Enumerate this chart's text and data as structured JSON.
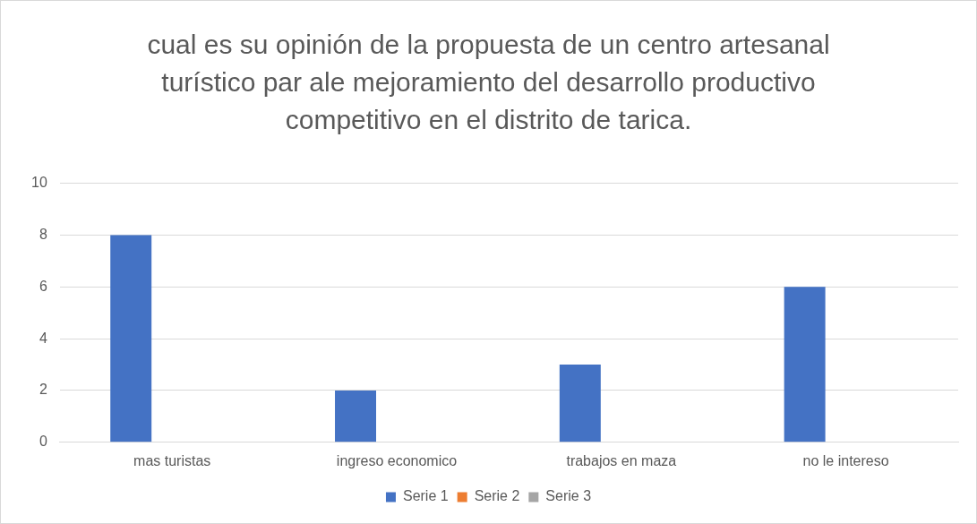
{
  "chart_data": {
    "type": "bar",
    "title": "cual es su opinión de la propuesta de un centro artesanal turístico par ale mejoramiento del desarrollo productivo competitivo en el distrito de tarica.",
    "categories": [
      "mas turistas",
      "ingreso economico",
      "trabajos en maza",
      "no le intereso"
    ],
    "series": [
      {
        "name": "Serie 1",
        "color": "#4472c4",
        "values": [
          8,
          2,
          3,
          6
        ]
      },
      {
        "name": "Serie 2",
        "color": "#ed7d31",
        "values": [
          null,
          null,
          null,
          null
        ]
      },
      {
        "name": "Serie 3",
        "color": "#a5a5a5",
        "values": [
          null,
          null,
          null,
          null
        ]
      }
    ],
    "ylim": [
      0,
      10
    ],
    "yticks": [
      0,
      2,
      4,
      6,
      8,
      10
    ],
    "grid": "y",
    "legend": "bottom"
  }
}
